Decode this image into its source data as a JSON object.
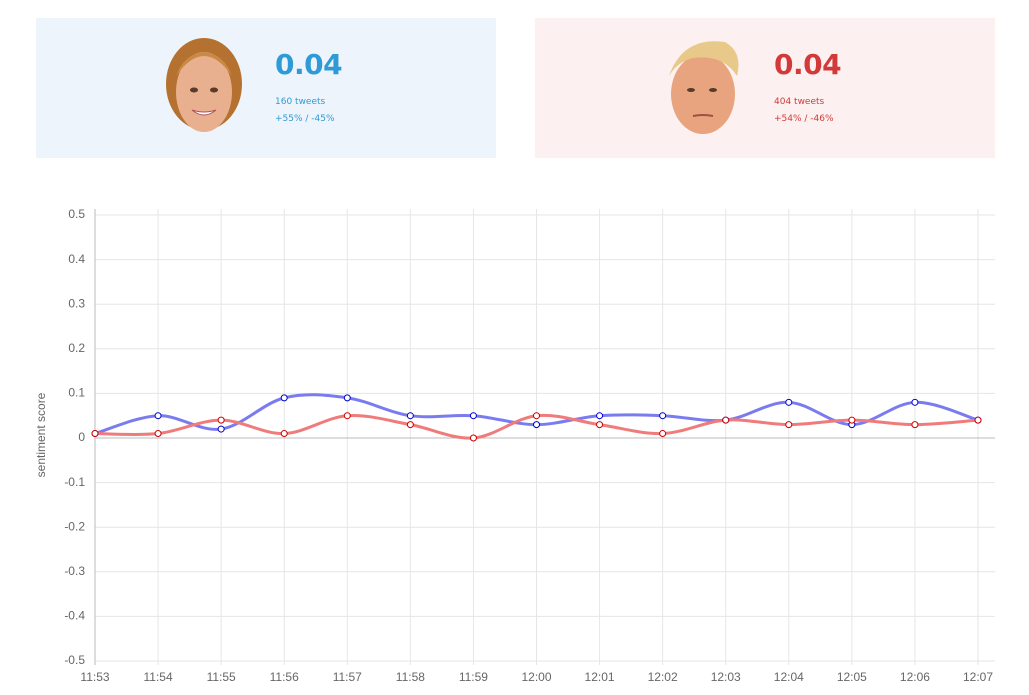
{
  "cards": [
    {
      "score": "0.04",
      "tweets": "160 tweets",
      "split": "+55% / -45%"
    },
    {
      "score": "0.04",
      "tweets": "404 tweets",
      "split": "+54% / -46%"
    }
  ],
  "chart_data": {
    "type": "line",
    "y_label": "sentiment score",
    "categories": [
      "11:53",
      "11:54",
      "11:55",
      "11:56",
      "11:57",
      "11:58",
      "11:59",
      "12:00",
      "12:01",
      "12:02",
      "12:03",
      "12:04",
      "12:05",
      "12:06",
      "12:07"
    ],
    "series": [
      {
        "color": "#7b7bf0",
        "point_color": "#0000cc",
        "values": [
          0.01,
          0.05,
          0.02,
          0.09,
          0.09,
          0.05,
          0.05,
          0.03,
          0.05,
          0.05,
          0.04,
          0.08,
          0.03,
          0.08,
          0.04
        ]
      },
      {
        "color": "#f07b7b",
        "point_color": "#cc0000",
        "values": [
          0.01,
          0.01,
          0.04,
          0.01,
          0.05,
          0.03,
          0,
          0.05,
          0.03,
          0.01,
          0.04,
          0.03,
          0.04,
          0.03,
          0.04
        ]
      }
    ],
    "ylim": [
      -0.5,
      0.5
    ],
    "yticks": [
      0.5,
      0.4,
      0.3,
      0.2,
      0.1,
      0,
      -0.1,
      -0.2,
      -0.3,
      -0.4,
      -0.5
    ],
    "grid": true
  }
}
